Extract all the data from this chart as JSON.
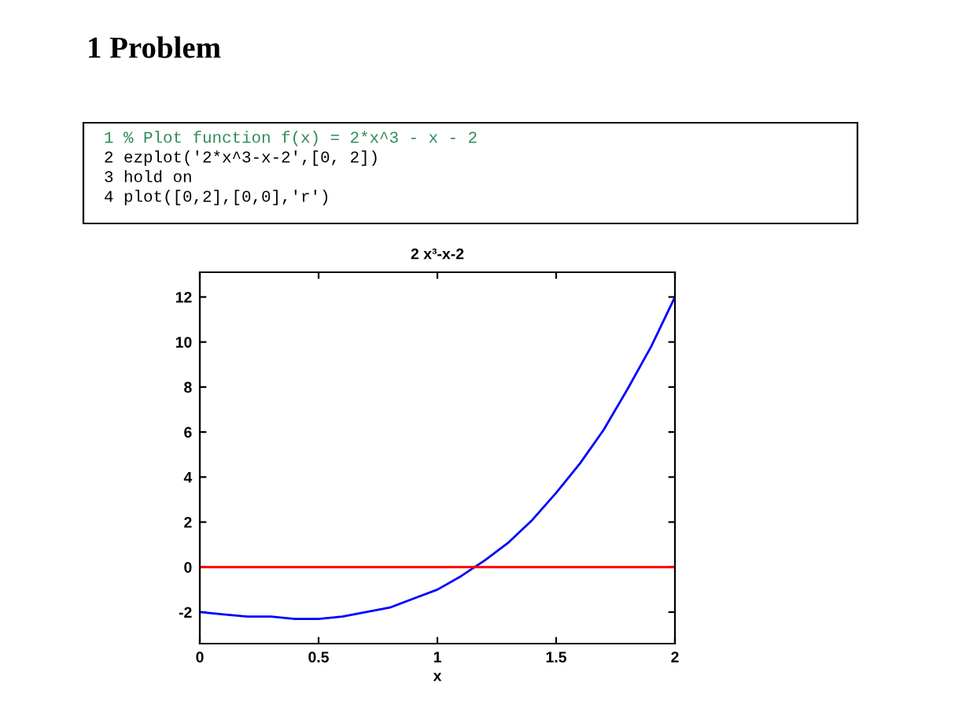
{
  "chart_data": {
    "type": "line",
    "title": "2 x³-x-2",
    "xlabel": "x",
    "annotations": [
      "1 Problem",
      "1 % Plot function f(x) = 2*x^3 - x - 2",
      "2 ezplot('2*x^3-x-2',[0, 2])",
      "3 hold on",
      "4 plot([0,2],[0,0],'r')"
    ],
    "series": [
      {
        "color": "#0000ff",
        "x": [
          0,
          0.1,
          0.2,
          0.3,
          0.4,
          0.5,
          0.6,
          0.7,
          0.8,
          0.9,
          1.0,
          1.1,
          1.2,
          1.3,
          1.4,
          1.5,
          1.6,
          1.7,
          1.8,
          1.9,
          2.0
        ],
        "values": [
          -2,
          -2.1,
          -2.2,
          -2.2,
          -2.3,
          -2.3,
          -2.2,
          -2.0,
          -1.8,
          -1.4,
          -1.0,
          -0.4,
          0.3,
          1.1,
          2.1,
          3.3,
          4.6,
          6.1,
          7.9,
          9.8,
          12
        ]
      },
      {
        "color": "#ff0000",
        "x": [
          0,
          2
        ],
        "values": [
          0,
          0
        ]
      }
    ],
    "xlim": [
      0,
      2
    ],
    "xticks": [
      0,
      0.5,
      1,
      1.5,
      2
    ],
    "ylim": [
      -3.4,
      13.1
    ],
    "yticks": [
      -2,
      0,
      2,
      4,
      6,
      8,
      10,
      12
    ],
    "grid": false,
    "legend": false,
    "marker": "none",
    "line_style": "solid"
  }
}
